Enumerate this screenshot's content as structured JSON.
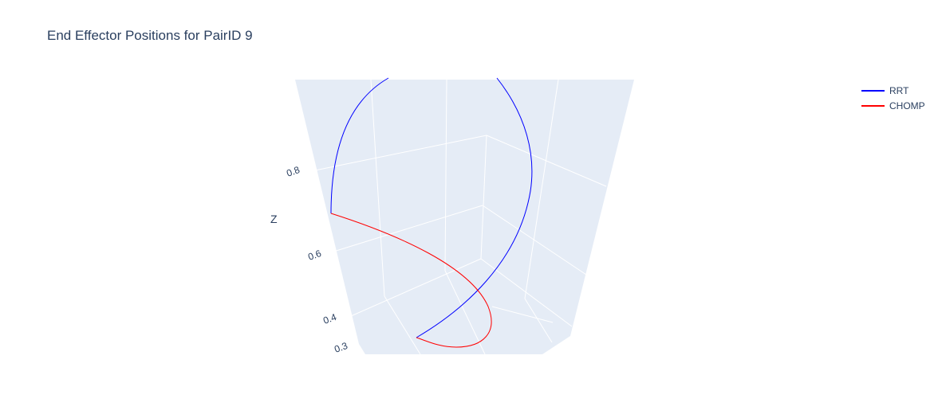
{
  "chart_data": {
    "type": "line",
    "projection": "3d",
    "title": "End Effector Positions for PairID 9",
    "zlabel": "Z",
    "z_ticks": [
      "0.8",
      "0.6",
      "0.4",
      "0.3"
    ],
    "legend": {
      "placement": "top-right",
      "entries": [
        "RRT",
        "CHOMP"
      ]
    },
    "series": [
      {
        "name": "RRT",
        "color": "#0000ff",
        "line_width": 1
      },
      {
        "name": "CHOMP",
        "color": "#ff0000",
        "line_width": 1
      }
    ],
    "background_color": "#e5ecf6",
    "grid": true
  }
}
